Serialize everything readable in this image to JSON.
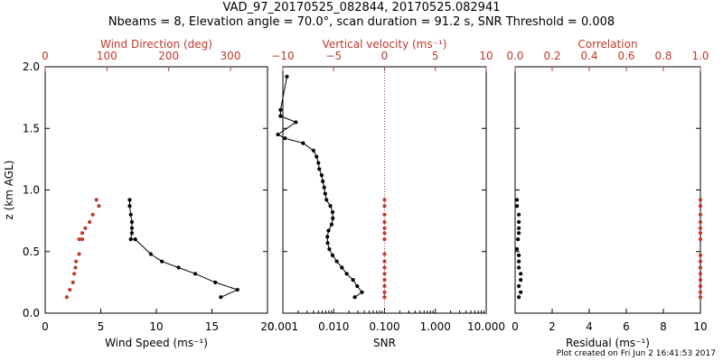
{
  "header": {
    "title": "VAD_97_20170525_082844, 20170525.082941",
    "subtitle": "Nbeams = 8, Elevation angle = 70.0°, scan duration = 91.2 s, SNR Threshold = 0.008"
  },
  "footer": {
    "note": "Plot created on Fri Jun  2 16:41:53 2017"
  },
  "colors": {
    "primary": "#000000",
    "accent": "#c0392b"
  },
  "chart_data": [
    {
      "type": "line",
      "panel": "wind",
      "ylabel": "z (km AGL)",
      "ylim": [
        0,
        2.0
      ],
      "yticks": [
        0.0,
        0.5,
        1.0,
        1.5,
        2.0
      ],
      "ytick_labels": [
        "0.0",
        "0.5",
        "1.0",
        "1.5",
        "2.0"
      ],
      "xlabel_bottom": "Wind Speed (ms⁻¹)",
      "xlim_bottom": [
        0,
        20
      ],
      "xticks_bottom": [
        0,
        5,
        10,
        15,
        20
      ],
      "xtick_labels_bottom": [
        "0",
        "5",
        "10",
        "15",
        "20"
      ],
      "xlabel_top": "Wind Direction (deg)",
      "xlim_top": [
        0,
        360
      ],
      "xticks_top": [
        0,
        100,
        200,
        300
      ],
      "xtick_labels_top": [
        "0",
        "100",
        "200",
        "300"
      ],
      "series": [
        {
          "axis": "bottom",
          "color": "#000000",
          "x": [
            7.6,
            7.6,
            7.7,
            7.8,
            7.8,
            7.8,
            7.7,
            8.1,
            9.5,
            10.5,
            12.0,
            13.5,
            15.3,
            17.3,
            15.8
          ],
          "y": [
            0.92,
            0.87,
            0.8,
            0.74,
            0.69,
            0.65,
            0.6,
            0.6,
            0.48,
            0.42,
            0.37,
            0.32,
            0.25,
            0.19,
            0.13
          ]
        },
        {
          "axis": "top",
          "color": "#c0392b",
          "x": [
            83,
            87,
            77,
            72,
            65,
            60,
            60,
            55,
            55,
            50,
            49,
            47,
            45,
            40,
            35
          ],
          "y": [
            0.92,
            0.87,
            0.8,
            0.74,
            0.69,
            0.65,
            0.6,
            0.6,
            0.48,
            0.42,
            0.37,
            0.32,
            0.25,
            0.19,
            0.13
          ]
        }
      ]
    },
    {
      "type": "line",
      "panel": "snr",
      "ylim": [
        0,
        2.0
      ],
      "xlabel_bottom": "SNR",
      "xscale_bottom": "log",
      "xlim_bottom": [
        0.001,
        10.0
      ],
      "xticks_bottom": [
        0.001,
        0.01,
        0.1,
        1.0,
        10.0
      ],
      "xtick_labels_bottom": [
        "0.001",
        "0.010",
        "0.100",
        "1.000",
        "10.000"
      ],
      "xlabel_top": "Vertical velocity (ms⁻¹)",
      "xlim_top": [
        -10,
        10
      ],
      "xticks_top": [
        -10,
        -5,
        0,
        5,
        10
      ],
      "xtick_labels_top": [
        "−10",
        "−5",
        "0",
        "5",
        "10"
      ],
      "zero_line_top": 0,
      "series": [
        {
          "axis": "bottom",
          "color": "#000000",
          "x": [
            0.0012,
            0.0009,
            0.0009,
            0.0018,
            0.0008,
            0.0011,
            0.0025,
            0.004,
            0.0046,
            0.005,
            0.0052,
            0.0058,
            0.0061,
            0.0065,
            0.0068,
            0.0072,
            0.0086,
            0.0095,
            0.0096,
            0.0091,
            0.0079,
            0.0075,
            0.0076,
            0.0082,
            0.0095,
            0.0115,
            0.0145,
            0.018,
            0.024,
            0.029,
            0.036,
            0.026
          ],
          "y": [
            1.92,
            1.65,
            1.6,
            1.55,
            1.45,
            1.42,
            1.38,
            1.32,
            1.27,
            1.22,
            1.17,
            1.12,
            1.07,
            1.02,
            0.97,
            0.92,
            0.87,
            0.82,
            0.77,
            0.72,
            0.67,
            0.62,
            0.57,
            0.52,
            0.47,
            0.42,
            0.37,
            0.32,
            0.27,
            0.22,
            0.17,
            0.13
          ]
        },
        {
          "axis": "top",
          "color": "#c0392b",
          "x": [
            0,
            0,
            0,
            0,
            0,
            0,
            0,
            0,
            0,
            0,
            0,
            0,
            0,
            0,
            0
          ],
          "y": [
            0.92,
            0.87,
            0.8,
            0.74,
            0.69,
            0.65,
            0.6,
            0.48,
            0.42,
            0.37,
            0.32,
            0.27,
            0.22,
            0.17,
            0.13
          ]
        }
      ]
    },
    {
      "type": "scatter",
      "panel": "residual",
      "ylim": [
        0,
        2.0
      ],
      "xlabel_bottom": "Residual (ms⁻¹)",
      "xlim_bottom": [
        0,
        10
      ],
      "xticks_bottom": [
        0,
        2,
        4,
        6,
        8,
        10
      ],
      "xtick_labels_bottom": [
        "0",
        "2",
        "4",
        "6",
        "8",
        "10"
      ],
      "xlabel_top": "Correlation",
      "xlim_top": [
        0,
        1.0
      ],
      "xticks_top": [
        0,
        0.2,
        0.4,
        0.6,
        0.8,
        1.0
      ],
      "xtick_labels_top": [
        "0.0",
        "0.2",
        "0.4",
        "0.6",
        "0.8",
        "1.0"
      ],
      "series": [
        {
          "axis": "bottom",
          "color": "#000000",
          "x": [
            0.1,
            0.1,
            0.2,
            0.2,
            0.2,
            0.2,
            0.15,
            0.1,
            0.2,
            0.2,
            0.2,
            0.3,
            0.3,
            0.2,
            0.3,
            0.2
          ],
          "y": [
            0.92,
            0.87,
            0.8,
            0.74,
            0.69,
            0.65,
            0.6,
            0.52,
            0.47,
            0.42,
            0.37,
            0.32,
            0.27,
            0.22,
            0.17,
            0.13
          ]
        },
        {
          "axis": "top",
          "color": "#c0392b",
          "x": [
            1.0,
            1.0,
            1.0,
            1.0,
            1.0,
            1.0,
            1.0,
            1.0,
            1.0,
            1.0,
            1.0,
            1.0,
            1.0,
            1.0,
            1.0
          ],
          "y": [
            0.92,
            0.87,
            0.8,
            0.74,
            0.69,
            0.65,
            0.6,
            0.47,
            0.42,
            0.37,
            0.32,
            0.27,
            0.22,
            0.17,
            0.13
          ]
        }
      ]
    }
  ]
}
